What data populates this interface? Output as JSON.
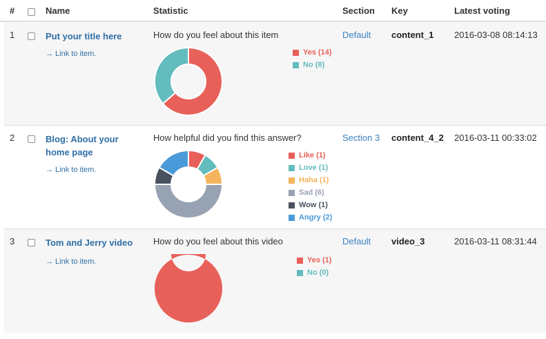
{
  "header": {
    "num": "#",
    "name": "Name",
    "statistic": "Statistic",
    "section": "Section",
    "key": "Key",
    "latest_voting": "Latest voting"
  },
  "rows": [
    {
      "num": "1",
      "title": "Put your title here",
      "link": "→ Link to item.",
      "question": "How do you feel about this item",
      "section": "Default",
      "key": "content_1",
      "latest_voting": "2016-03-08 08:14:13",
      "chart_data": {
        "type": "pie",
        "categories": [
          "Yes",
          "No"
        ],
        "values": [
          14,
          8
        ],
        "legend": [
          "Yes (14)",
          "No (8)"
        ],
        "colors": [
          "#e8605a",
          "#63bcbd"
        ],
        "legend_placement": "right"
      }
    },
    {
      "num": "2",
      "title": "Blog: About your home page",
      "link": "→ Link to item.",
      "question": "How helpful did you find this answer?",
      "section": "Section 3",
      "key": "content_4_2",
      "latest_voting": "2016-03-11 00:33:02",
      "chart_data": {
        "type": "pie",
        "categories": [
          "Like",
          "Love",
          "Haha",
          "Sad",
          "Wow",
          "Angry"
        ],
        "values": [
          1,
          1,
          1,
          6,
          1,
          2
        ],
        "legend": [
          "Like (1)",
          "Love (1)",
          "Haha (1)",
          "Sad (6)",
          "Wow (1)",
          "Angry (2)"
        ],
        "colors": [
          "#e8605a",
          "#63bcbd",
          "#f4b45c",
          "#97a2b2",
          "#4a5260",
          "#4a9ad9"
        ],
        "legend_placement": "right"
      }
    },
    {
      "num": "3",
      "title": "Tom and Jerry video",
      "link": "→ Link to item.",
      "question": "How do you feel about this video",
      "section": "Default",
      "key": "video_3",
      "latest_voting": "2016-03-11 08:31:44",
      "chart_data": {
        "type": "pie",
        "categories": [
          "Yes",
          "No"
        ],
        "values": [
          1,
          0
        ],
        "legend": [
          "Yes (1)",
          "No (0)"
        ],
        "colors": [
          "#e8605a",
          "#63bcbd"
        ],
        "legend_placement": "right"
      }
    }
  ]
}
